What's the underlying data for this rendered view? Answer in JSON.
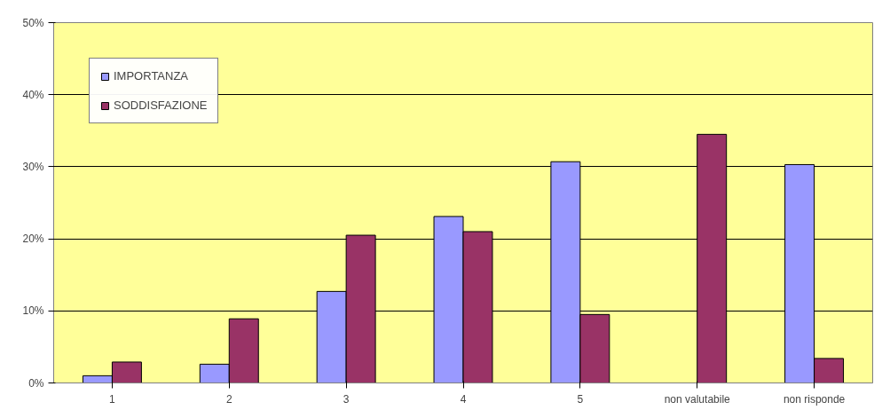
{
  "chart_data": {
    "type": "bar",
    "categories": [
      "1",
      "2",
      "3",
      "4",
      "5",
      "non valutabile",
      "non risponde"
    ],
    "series": [
      {
        "name": "IMPORTANZA",
        "color": "#9999ff",
        "values": [
          1.0,
          2.6,
          12.7,
          23.1,
          30.7,
          null,
          30.3
        ]
      },
      {
        "name": "SODDISFAZIONE",
        "color": "#993366",
        "values": [
          2.9,
          8.9,
          20.5,
          21.0,
          9.5,
          34.5,
          3.4
        ]
      }
    ],
    "ylim": [
      0,
      50
    ],
    "yticks": [
      {
        "value": 0,
        "label": "0%"
      },
      {
        "value": 10,
        "label": "10%"
      },
      {
        "value": 20,
        "label": "20%"
      },
      {
        "value": 30,
        "label": "30%"
      },
      {
        "value": 40,
        "label": "40%"
      },
      {
        "value": 50,
        "label": "50%"
      }
    ],
    "grid": "y",
    "legend": "top left"
  }
}
